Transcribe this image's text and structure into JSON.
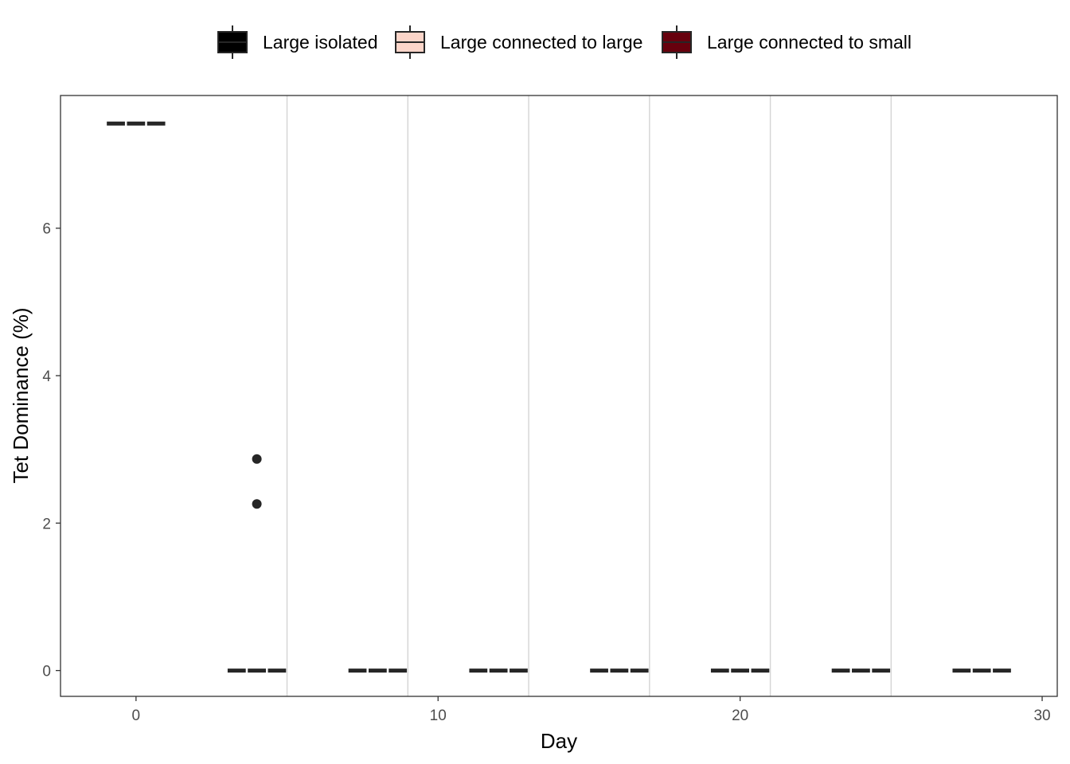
{
  "chart_data": {
    "type": "box",
    "xlabel": "Day",
    "ylabel": "Tet Dominance (%)",
    "xlim": [
      -2.5,
      30.5
    ],
    "ylim": [
      -0.35,
      7.8
    ],
    "x_ticks": [
      0,
      10,
      20,
      30
    ],
    "x_tick_labels": [
      "0",
      "10",
      "20",
      "30"
    ],
    "y_ticks": [
      0,
      2,
      4,
      6
    ],
    "y_tick_labels": [
      "0",
      "2",
      "4",
      "6"
    ],
    "grid": "vertical lines at x = 5, 9, 13, 17, 21, 25",
    "grid_x": [
      5,
      9,
      13,
      17,
      21,
      25
    ],
    "legend_position": "top",
    "series": [
      {
        "name": "Large isolated",
        "fill": "#000000"
      },
      {
        "name": "Large connected to large",
        "fill": "#fcd5c9"
      },
      {
        "name": "Large connected to small",
        "fill": "#67000d"
      }
    ],
    "days": [
      0,
      4,
      8,
      12,
      16,
      20,
      24,
      28
    ],
    "box_medians": [
      [
        7.42,
        7.42,
        7.42
      ],
      [
        0,
        0,
        0
      ],
      [
        0,
        0,
        0
      ],
      [
        0,
        0,
        0
      ],
      [
        0,
        0,
        0
      ],
      [
        0,
        0,
        0
      ],
      [
        0,
        0,
        0
      ],
      [
        0,
        0,
        0
      ]
    ],
    "outliers": [
      {
        "day": 4,
        "series": "Large connected to large",
        "value": 2.87
      },
      {
        "day": 4,
        "series": "Large connected to large",
        "value": 2.26
      }
    ]
  }
}
